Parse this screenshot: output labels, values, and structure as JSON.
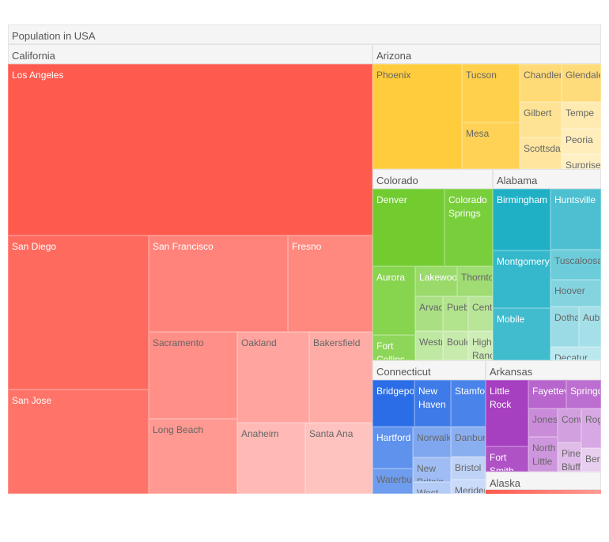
{
  "chart_data": {
    "type": "treemap",
    "title": "Population in USA",
    "groups": [
      {
        "name": "California",
        "color": "#ff5a4e",
        "items": [
          "Los Angeles",
          "San Diego",
          "San Jose",
          "San Francisco",
          "Fresno",
          "Sacramento",
          "Long Beach",
          "Oakland",
          "Bakersfield",
          "Anaheim",
          "Santa Ana"
        ]
      },
      {
        "name": "Arizona",
        "color": "#ffcc3d",
        "items": [
          "Phoenix",
          "Tucson",
          "Mesa",
          "Chandler",
          "Glendale",
          "Gilbert",
          "Scottsdale",
          "Tempe",
          "Peoria",
          "Surprise"
        ]
      },
      {
        "name": "Colorado",
        "color": "#72cc30",
        "items": [
          "Denver",
          "Colorado Springs",
          "Aurora",
          "Fort Collins",
          "Lakewood",
          "Thornton",
          "Arvada",
          "Pueblo",
          "Centennial",
          "Westminster",
          "Boulder",
          "Highlands Ranch"
        ]
      },
      {
        "name": "Alabama",
        "color": "#1fb0c6",
        "items": [
          "Birmingham",
          "Huntsville",
          "Montgomery",
          "Mobile",
          "Tuscaloosa",
          "Hoover",
          "Dothan",
          "Auburn",
          "Decatur"
        ]
      },
      {
        "name": "Connecticut",
        "color": "#2a6de6",
        "items": [
          "Bridgeport",
          "New Haven",
          "Stamford",
          "Hartford",
          "Waterbury",
          "Norwalk",
          "Danbury",
          "New Britain",
          "West Hartford",
          "Bristol",
          "Meriden"
        ]
      },
      {
        "name": "Arkansas",
        "color": "#a63fc0",
        "items": [
          "Little Rock",
          "Fort Smith",
          "Fayetteville",
          "Springdale",
          "Jonesboro",
          "Conway",
          "Rogers",
          "North Little Rock",
          "Pine Bluff",
          "Bentonville"
        ]
      },
      {
        "name": "Alaska",
        "color": "#ff5a4e",
        "items": []
      }
    ]
  }
}
